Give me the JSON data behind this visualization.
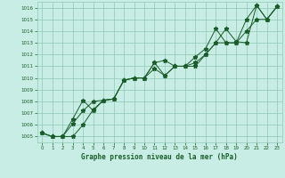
{
  "xlabel": "Graphe pression niveau de la mer (hPa)",
  "xlim_min": -0.5,
  "xlim_max": 23.5,
  "ylim_min": 1004.5,
  "ylim_max": 1016.5,
  "yticks": [
    1005,
    1006,
    1007,
    1008,
    1009,
    1010,
    1011,
    1012,
    1013,
    1014,
    1015,
    1016
  ],
  "xticks": [
    0,
    1,
    2,
    3,
    4,
    5,
    6,
    7,
    8,
    9,
    10,
    11,
    12,
    13,
    14,
    15,
    16,
    17,
    18,
    19,
    20,
    21,
    22,
    23
  ],
  "bg_color": "#c8ede4",
  "grid_color": "#90c8b8",
  "line_color": "#1a5c2a",
  "line1": [
    1005.3,
    1005.0,
    1005.0,
    1006.1,
    1007.2,
    1008.0,
    1008.1,
    1008.2,
    1009.8,
    1010.0,
    1010.0,
    1011.3,
    1010.2,
    1011.0,
    1011.0,
    1011.8,
    1012.5,
    1014.2,
    1013.0,
    1013.0,
    1015.0,
    1016.2,
    1015.0,
    1016.1
  ],
  "line2": [
    1005.3,
    1005.0,
    1005.0,
    1006.5,
    1008.1,
    1007.2,
    1008.1,
    1008.2,
    1009.8,
    1010.0,
    1010.0,
    1011.3,
    1011.5,
    1011.0,
    1011.0,
    1011.3,
    1012.0,
    1013.0,
    1014.2,
    1013.1,
    1013.0,
    1016.2,
    1015.0,
    1016.1
  ],
  "line3": [
    1005.3,
    1005.0,
    1005.0,
    1005.0,
    1006.0,
    1007.3,
    1008.1,
    1008.2,
    1009.8,
    1010.0,
    1010.0,
    1010.8,
    1010.2,
    1011.0,
    1011.0,
    1011.0,
    1012.0,
    1013.0,
    1013.0,
    1013.0,
    1014.0,
    1015.0,
    1015.0,
    1016.1
  ]
}
